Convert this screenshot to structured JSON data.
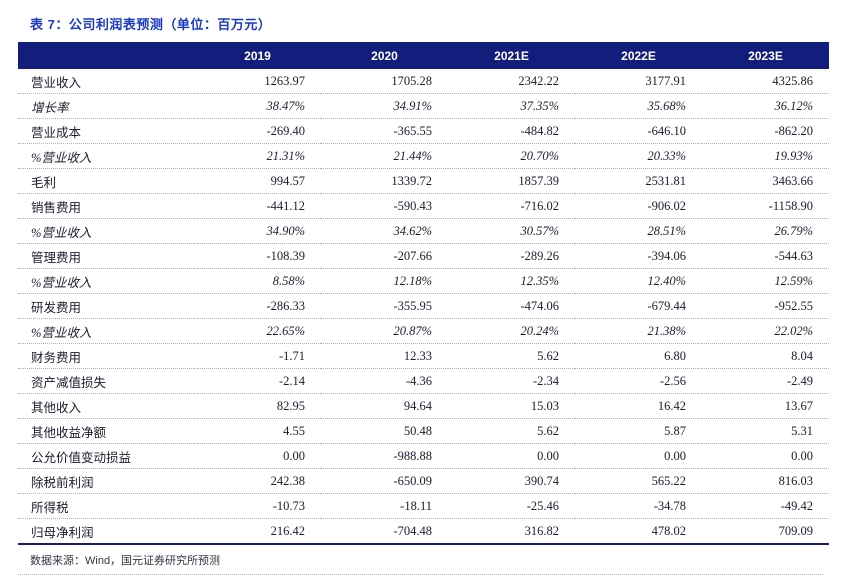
{
  "title": "表 7：公司利润表预测（单位：百万元）",
  "footer": "数据来源：Wind，国元证券研究所预测",
  "colors": {
    "header_bg": "#121d7c",
    "title_color": "#1b3ac2",
    "body_text": "#1c1c30",
    "bottom_rule": "#121d7c",
    "row_separator_dots": "#a9b1cf"
  },
  "table": {
    "columns": [
      "",
      "2019",
      "2020",
      "2021E",
      "2022E",
      "2023E"
    ],
    "rows": [
      {
        "label": "营业收入",
        "italic": false,
        "values": [
          "1263.97",
          "1705.28",
          "2342.22",
          "3177.91",
          "4325.86"
        ]
      },
      {
        "label": "增长率",
        "italic": true,
        "values": [
          "38.47%",
          "34.91%",
          "37.35%",
          "35.68%",
          "36.12%"
        ]
      },
      {
        "label": "营业成本",
        "italic": false,
        "values": [
          "-269.40",
          "-365.55",
          "-484.82",
          "-646.10",
          "-862.20"
        ]
      },
      {
        "label": "%营业收入",
        "italic": true,
        "values": [
          "21.31%",
          "21.44%",
          "20.70%",
          "20.33%",
          "19.93%"
        ]
      },
      {
        "label": "毛利",
        "italic": false,
        "values": [
          "994.57",
          "1339.72",
          "1857.39",
          "2531.81",
          "3463.66"
        ]
      },
      {
        "label": "销售费用",
        "italic": false,
        "values": [
          "-441.12",
          "-590.43",
          "-716.02",
          "-906.02",
          "-1158.90"
        ]
      },
      {
        "label": "%营业收入",
        "italic": true,
        "values": [
          "34.90%",
          "34.62%",
          "30.57%",
          "28.51%",
          "26.79%"
        ]
      },
      {
        "label": "管理费用",
        "italic": false,
        "values": [
          "-108.39",
          "-207.66",
          "-289.26",
          "-394.06",
          "-544.63"
        ]
      },
      {
        "label": "%营业收入",
        "italic": true,
        "values": [
          "8.58%",
          "12.18%",
          "12.35%",
          "12.40%",
          "12.59%"
        ]
      },
      {
        "label": "研发费用",
        "italic": false,
        "values": [
          "-286.33",
          "-355.95",
          "-474.06",
          "-679.44",
          "-952.55"
        ]
      },
      {
        "label": "%营业收入",
        "italic": true,
        "values": [
          "22.65%",
          "20.87%",
          "20.24%",
          "21.38%",
          "22.02%"
        ]
      },
      {
        "label": "财务费用",
        "italic": false,
        "values": [
          "-1.71",
          "12.33",
          "5.62",
          "6.80",
          "8.04"
        ]
      },
      {
        "label": "资产减值损失",
        "italic": false,
        "values": [
          "-2.14",
          "-4.36",
          "-2.34",
          "-2.56",
          "-2.49"
        ]
      },
      {
        "label": "其他收入",
        "italic": false,
        "values": [
          "82.95",
          "94.64",
          "15.03",
          "16.42",
          "13.67"
        ]
      },
      {
        "label": "其他收益净额",
        "italic": false,
        "values": [
          "4.55",
          "50.48",
          "5.62",
          "5.87",
          "5.31"
        ]
      },
      {
        "label": "公允价值变动损益",
        "italic": false,
        "values": [
          "0.00",
          "-988.88",
          "0.00",
          "0.00",
          "0.00"
        ]
      },
      {
        "label": "除税前利润",
        "italic": false,
        "values": [
          "242.38",
          "-650.09",
          "390.74",
          "565.22",
          "816.03"
        ]
      },
      {
        "label": "所得税",
        "italic": false,
        "values": [
          "-10.73",
          "-18.11",
          "-25.46",
          "-34.78",
          "-49.42"
        ]
      },
      {
        "label": "归母净利润",
        "italic": false,
        "values": [
          "216.42",
          "-704.48",
          "316.82",
          "478.02",
          "709.09"
        ]
      }
    ]
  }
}
